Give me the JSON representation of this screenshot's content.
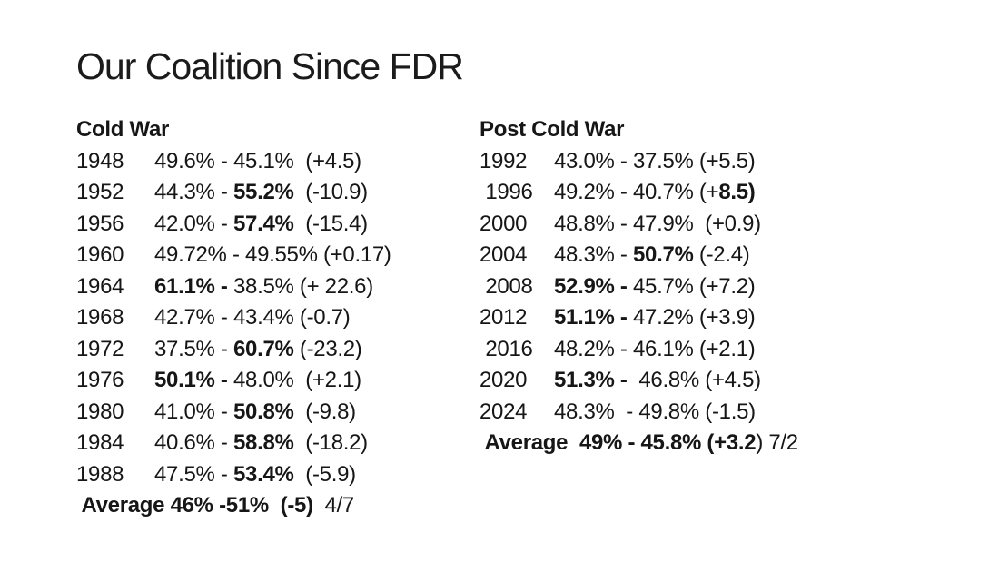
{
  "title": "Our Coalition Since FDR",
  "columns": [
    {
      "name": "cold-war",
      "header": "Cold War",
      "rows": [
        {
          "year": "1948",
          "segments": [
            {
              "text": "49.6% - 45.1%  (+4.5)",
              "bold": false
            }
          ]
        },
        {
          "year": "1952",
          "segments": [
            {
              "text": "44.3% - ",
              "bold": false
            },
            {
              "text": "55.2%",
              "bold": true
            },
            {
              "text": "  (-10.9)",
              "bold": false
            }
          ]
        },
        {
          "year": "1956",
          "segments": [
            {
              "text": "42.0% - ",
              "bold": false
            },
            {
              "text": "57.4%",
              "bold": true
            },
            {
              "text": "  (-15.4)",
              "bold": false
            }
          ]
        },
        {
          "year": "1960",
          "segments": [
            {
              "text": "49.72% - 49.55% (+0.17)",
              "bold": false
            }
          ]
        },
        {
          "year": "1964",
          "segments": [
            {
              "text": "61.1% - ",
              "bold": true
            },
            {
              "text": "38.5% (+ 22.6)",
              "bold": false
            }
          ]
        },
        {
          "year": "1968",
          "segments": [
            {
              "text": "42.7% - 43.4% (-0.7)",
              "bold": false
            }
          ]
        },
        {
          "year": "1972",
          "segments": [
            {
              "text": "37.5% - ",
              "bold": false
            },
            {
              "text": "60.7%",
              "bold": true
            },
            {
              "text": " (-23.2)",
              "bold": false
            }
          ]
        },
        {
          "year": "1976",
          "segments": [
            {
              "text": "50.1% - ",
              "bold": true
            },
            {
              "text": "48.0%  (+2.1)",
              "bold": false
            }
          ]
        },
        {
          "year": "1980",
          "segments": [
            {
              "text": "41.0% - ",
              "bold": false
            },
            {
              "text": "50.8%",
              "bold": true
            },
            {
              "text": "  (-9.8)",
              "bold": false
            }
          ]
        },
        {
          "year": "1984",
          "segments": [
            {
              "text": "40.6% - ",
              "bold": false
            },
            {
              "text": "58.8%",
              "bold": true
            },
            {
              "text": "  (-18.2)",
              "bold": false
            }
          ]
        },
        {
          "year": "1988",
          "segments": [
            {
              "text": "47.5% - ",
              "bold": false
            },
            {
              "text": "53.4%",
              "bold": true
            },
            {
              "text": "  (-5.9)",
              "bold": false
            }
          ]
        }
      ],
      "average_segments": [
        {
          "text": " Average 46% -51%  (-5)",
          "bold": true
        },
        {
          "text": "  4/7",
          "bold": false
        }
      ]
    },
    {
      "name": "post-cold-war",
      "header": "Post Cold War",
      "rows": [
        {
          "year": "1992",
          "segments": [
            {
              "text": "43.0% - 37.5% (+5.5)",
              "bold": false
            }
          ]
        },
        {
          "year": " 1996",
          "segments": [
            {
              "text": "49.2% - 40.7% (+",
              "bold": false
            },
            {
              "text": "8.5)",
              "bold": true
            }
          ]
        },
        {
          "year": "2000",
          "segments": [
            {
              "text": "48.8% - 47.9%  (+0.9)",
              "bold": false
            }
          ]
        },
        {
          "year": "2004",
          "segments": [
            {
              "text": "48.3% - ",
              "bold": false
            },
            {
              "text": "50.7%",
              "bold": true
            },
            {
              "text": " (-2.4)",
              "bold": false
            }
          ]
        },
        {
          "year": " 2008",
          "segments": [
            {
              "text": "52.9% - ",
              "bold": true
            },
            {
              "text": "45.7% (+7.2)",
              "bold": false
            }
          ]
        },
        {
          "year": "2012",
          "segments": [
            {
              "text": "51.1% - ",
              "bold": true
            },
            {
              "text": "47.2% (+3.9)",
              "bold": false
            }
          ]
        },
        {
          "year": " 2016",
          "segments": [
            {
              "text": "48.2% - 46.1% (+2.1)",
              "bold": false
            }
          ]
        },
        {
          "year": "2020",
          "segments": [
            {
              "text": "51.3% - ",
              "bold": true
            },
            {
              "text": " 46.8% (+4.5)",
              "bold": false
            }
          ]
        },
        {
          "year": "2024",
          "segments": [
            {
              "text": "48.3%  - 49.8% (-1.5)",
              "bold": false
            }
          ]
        }
      ],
      "average_segments": [
        {
          "text": " Average  49% - 45.8% (+3.2",
          "bold": true
        },
        {
          "text": ") 7/2",
          "bold": false
        }
      ]
    }
  ]
}
